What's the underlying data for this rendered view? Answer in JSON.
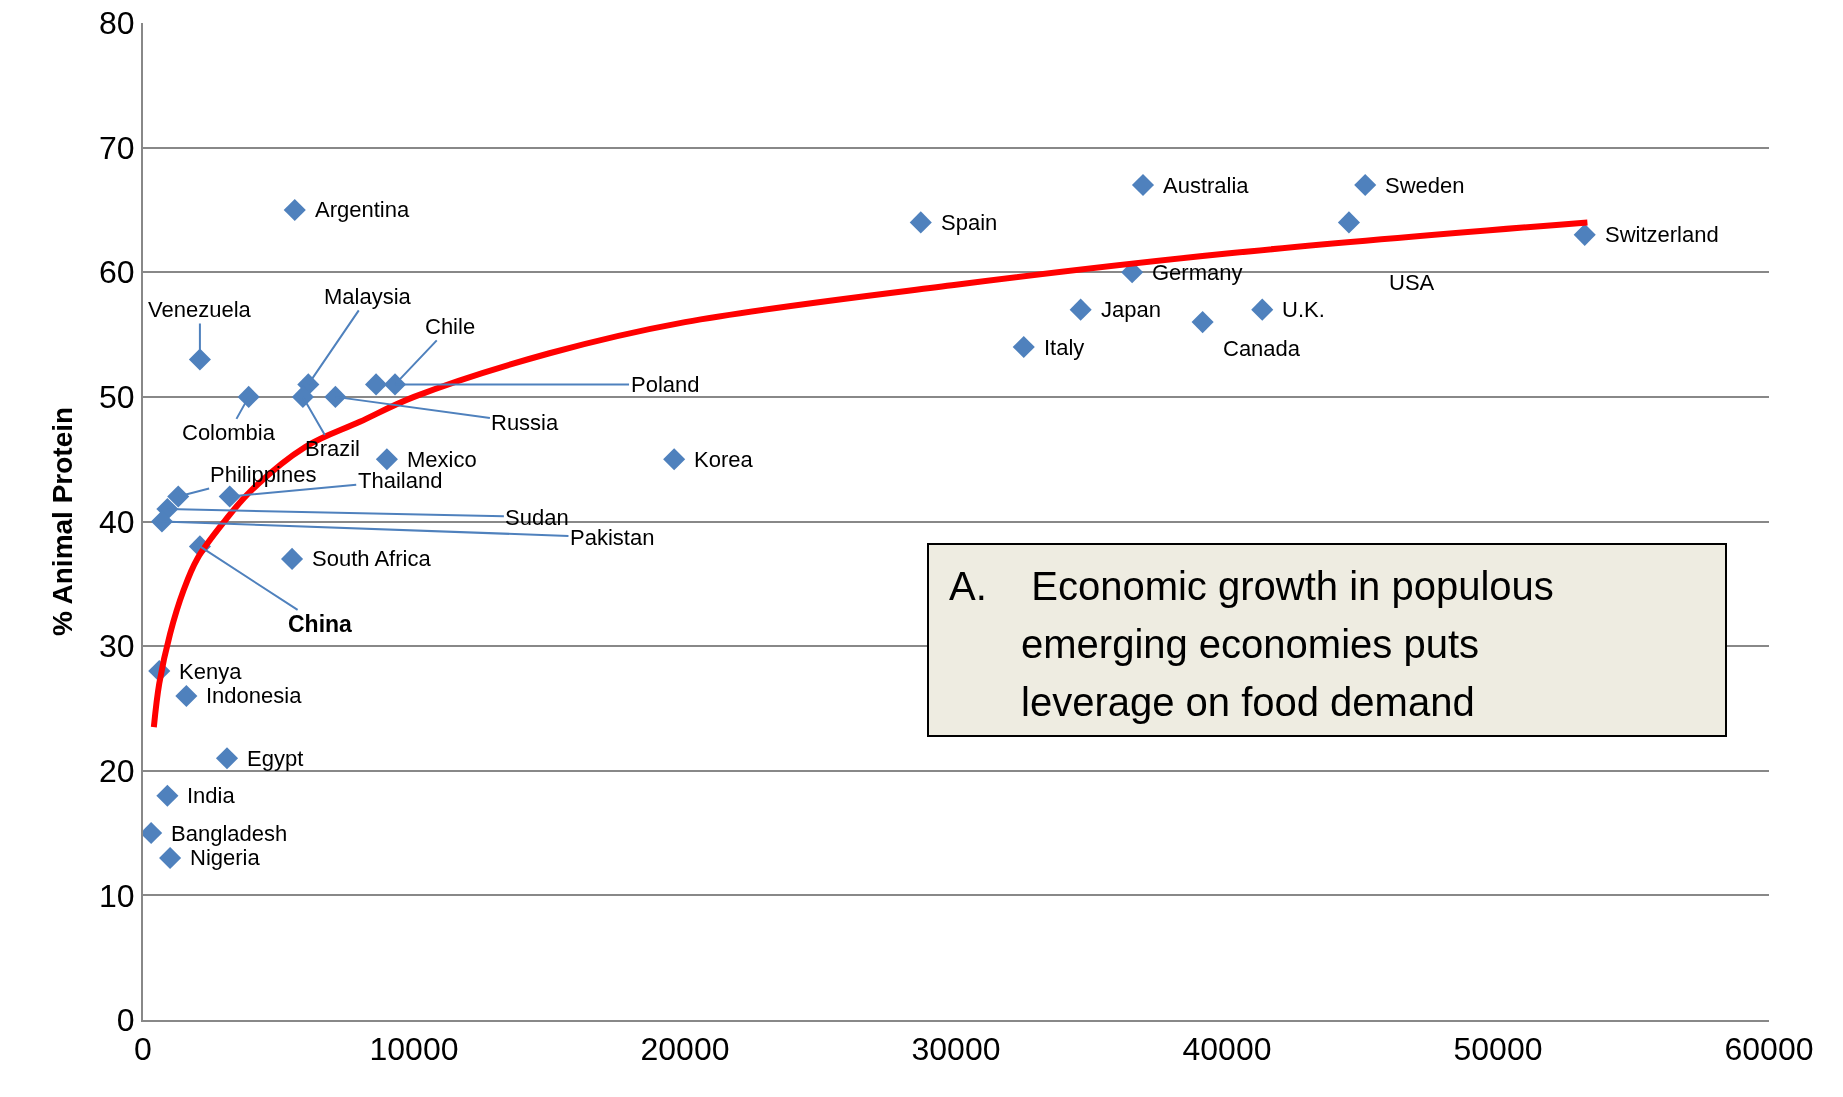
{
  "chart_data": {
    "type": "scatter",
    "ylabel": "% Animal Protein",
    "xlim": [
      0,
      60000
    ],
    "xticks": [
      0,
      10000,
      20000,
      30000,
      40000,
      50000,
      60000
    ],
    "ylim": [
      0,
      80
    ],
    "yticks": [
      0,
      10,
      20,
      30,
      40,
      50,
      60,
      70,
      80
    ],
    "grid": "y",
    "marker": "diamond",
    "series": [
      {
        "type": "scatter",
        "color": "#4f81bd",
        "x": [
          5600,
          28700,
          36900,
          45100,
          44500,
          53200,
          36500,
          34600,
          41300,
          39100,
          32500,
          19600,
          2100,
          3900,
          6100,
          5900,
          7100,
          9300,
          8600,
          9000,
          3200,
          1300,
          900,
          700,
          2100,
          5500,
          600,
          1600,
          3100,
          900,
          300,
          1000
        ],
        "values": [
          65,
          64,
          67,
          67,
          64,
          63,
          60,
          57,
          57,
          56,
          54,
          45,
          53,
          50,
          51,
          50,
          50,
          51,
          51,
          45,
          42,
          42,
          41,
          40,
          38,
          37,
          28,
          26,
          21,
          18,
          15,
          13
        ]
      },
      {
        "type": "line",
        "color": "#ff0000",
        "marker": "none",
        "x": [
          400,
          600,
          1000,
          1500,
          2000,
          3000,
          4000,
          6000,
          8000,
          10000,
          15000,
          20000,
          30000,
          40000,
          53300
        ],
        "values": [
          23.5,
          27,
          31,
          34.5,
          37,
          40,
          42.5,
          46,
          48,
          50,
          53.5,
          56,
          59,
          61.5,
          64
        ]
      }
    ],
    "annotations": [
      {
        "text": "Argentina",
        "x": 5600,
        "y": 65
      },
      {
        "text": "Spain",
        "x": 28700,
        "y": 64
      },
      {
        "text": "Australia",
        "x": 36900,
        "y": 67
      },
      {
        "text": "Sweden",
        "x": 45100,
        "y": 67
      },
      {
        "text": "USA",
        "x": 44500,
        "y": 64
      },
      {
        "text": "Switzerland",
        "x": 53200,
        "y": 63
      },
      {
        "text": "Germany",
        "x": 36500,
        "y": 60
      },
      {
        "text": "Japan",
        "x": 34600,
        "y": 57
      },
      {
        "text": "U.K.",
        "x": 41300,
        "y": 57
      },
      {
        "text": "Canada",
        "x": 39100,
        "y": 56
      },
      {
        "text": "Italy",
        "x": 32500,
        "y": 54
      },
      {
        "text": "Korea",
        "x": 19600,
        "y": 45
      },
      {
        "text": "Venezuela",
        "x": 2100,
        "y": 53
      },
      {
        "text": "Colombia",
        "x": 3900,
        "y": 50
      },
      {
        "text": "Malaysia",
        "x": 6100,
        "y": 51
      },
      {
        "text": "Brazil",
        "x": 5900,
        "y": 50
      },
      {
        "text": "Russia",
        "x": 7100,
        "y": 50
      },
      {
        "text": "Chile",
        "x": 9300,
        "y": 51
      },
      {
        "text": "Poland",
        "x": 9300,
        "y": 51
      },
      {
        "text": "Mexico",
        "x": 9000,
        "y": 45
      },
      {
        "text": "Thailand",
        "x": 3200,
        "y": 42
      },
      {
        "text": "Philippines",
        "x": 1300,
        "y": 42
      },
      {
        "text": "Sudan",
        "x": 900,
        "y": 41
      },
      {
        "text": "Pakistan",
        "x": 700,
        "y": 40
      },
      {
        "text": "China",
        "x": 2100,
        "y": 38
      },
      {
        "text": "South Africa",
        "x": 5500,
        "y": 37
      },
      {
        "text": "Kenya",
        "x": 600,
        "y": 28
      },
      {
        "text": "Indonesia",
        "x": 1600,
        "y": 26
      },
      {
        "text": "Egypt",
        "x": 3100,
        "y": 21
      },
      {
        "text": "India",
        "x": 900,
        "y": 18
      },
      {
        "text": "Bangladesh",
        "x": 300,
        "y": 15
      },
      {
        "text": "Nigeria",
        "x": 1000,
        "y": 13
      },
      "A.   Economic growth in populous emerging economies puts leverage on food demand"
    ]
  }
}
